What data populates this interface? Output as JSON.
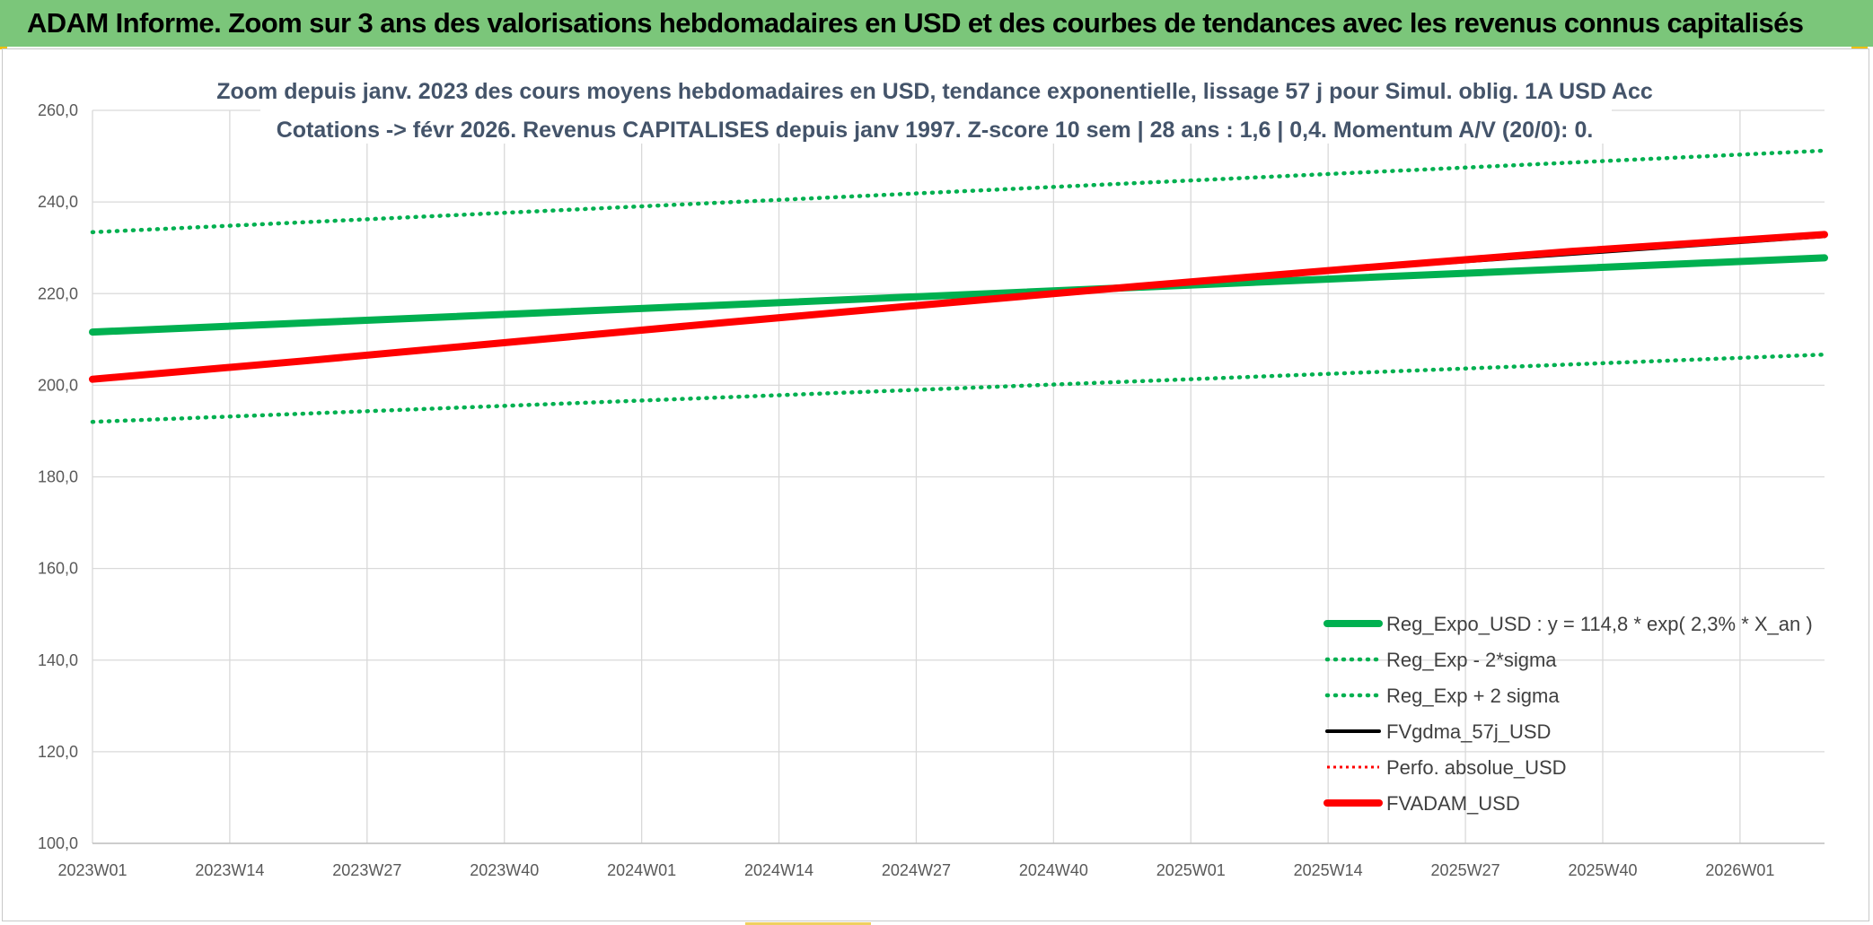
{
  "header": {
    "title": "ADAM Informe. Zoom sur 3 ans des valorisations hebdomadaires en USD et des courbes de tendances avec les revenus connus capitalisés"
  },
  "chart_data": {
    "type": "line",
    "title_lines": [
      "Zoom depuis janv. 2023 des cours moyens hebdomadaires en USD, tendance exponentielle, lissage 57 j pour Simul. oblig. 1A USD Acc",
      "Cotations -> févr 2026. Revenus CAPITALISES depuis janv 1997. Z-score 10 sem | 28 ans : 1,6 | 0,4. Momentum A/V (20/0): 0."
    ],
    "xlabel": "",
    "ylabel": "",
    "x_ticks": [
      "2023W01",
      "2023W14",
      "2023W27",
      "2023W40",
      "2024W01",
      "2024W14",
      "2024W27",
      "2024W40",
      "2025W01",
      "2025W14",
      "2025W27",
      "2025W40",
      "2026W01"
    ],
    "x_range_weeks": [
      0,
      164
    ],
    "y_ticks": [
      "100,0",
      "120,0",
      "140,0",
      "160,0",
      "180,0",
      "200,0",
      "220,0",
      "240,0",
      "260,0"
    ],
    "ylim": [
      100,
      260
    ],
    "grid": true,
    "legend_position": "bottom-right",
    "series": [
      {
        "name": "Reg_Expo_USD : y = 114,8 * exp( 2,3% *  X_an )",
        "color": "#00b050",
        "style": "solid",
        "x": [
          0,
          164
        ],
        "values": [
          211.6,
          227.8
        ]
      },
      {
        "name": "Reg_Exp - 2*sigma",
        "color": "#00b050",
        "style": "dotted",
        "x": [
          0,
          164
        ],
        "values": [
          192.0,
          206.7
        ]
      },
      {
        "name": "Reg_Exp + 2 sigma",
        "color": "#00b050",
        "style": "dotted",
        "x": [
          0,
          164
        ],
        "values": [
          233.4,
          251.2
        ]
      },
      {
        "name": "FVgdma_57j_USD",
        "color": "#000000",
        "style": "solid",
        "x": [
          0,
          40,
          80,
          120,
          164
        ],
        "values": [
          201.3,
          209.4,
          217.6,
          225.4,
          232.5
        ]
      },
      {
        "name": "Perfo. absolue_USD",
        "color": "#ff0000",
        "style": "dotted",
        "x": [
          0,
          40,
          80,
          120,
          164
        ],
        "values": [
          201.3,
          209.5,
          217.8,
          225.6,
          232.9
        ]
      },
      {
        "name": "FVADAM_USD",
        "color": "#ff0000",
        "style": "solid",
        "x": [
          0,
          20,
          40,
          60,
          80,
          100,
          120,
          140,
          164
        ],
        "values": [
          201.3,
          205.3,
          209.5,
          213.7,
          217.8,
          221.8,
          225.6,
          229.2,
          232.9
        ]
      }
    ]
  }
}
